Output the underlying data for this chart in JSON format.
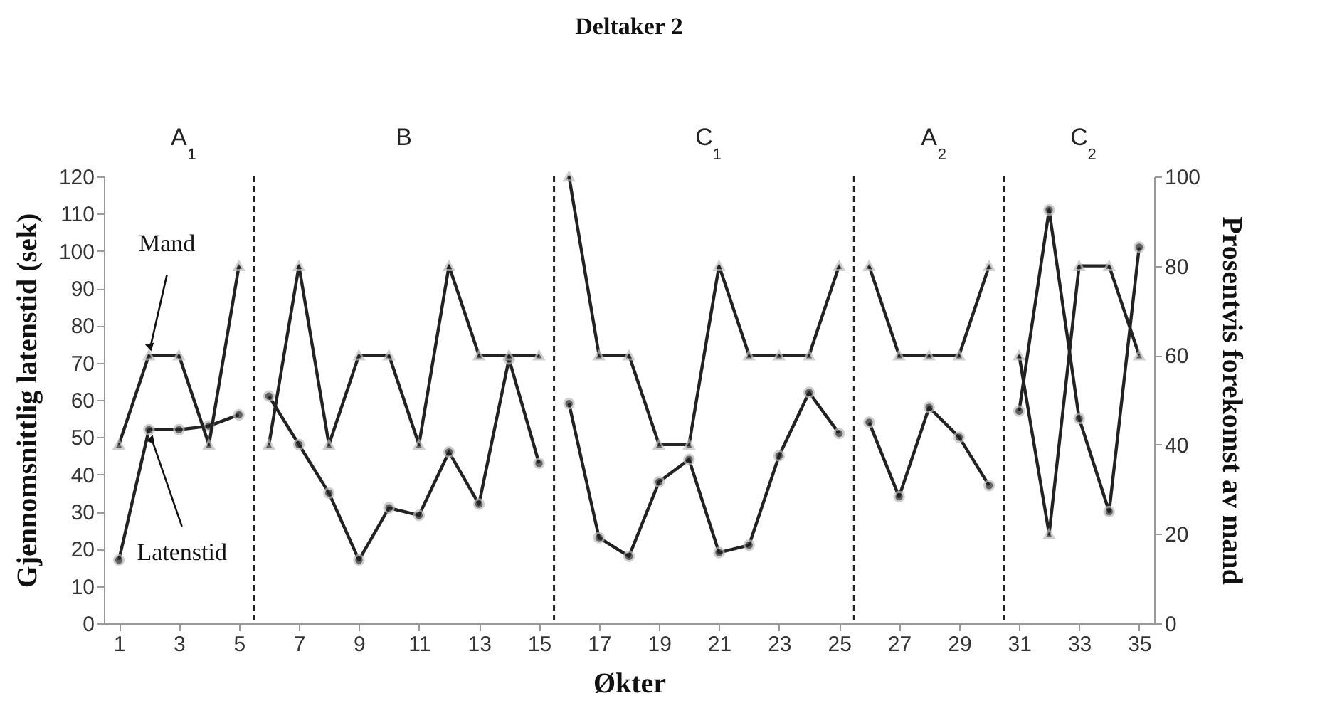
{
  "chart_data": {
    "type": "line",
    "title": "Deltaker 2",
    "xlabel": "Økter",
    "ylabel": "Gjennomsnittlig latenstid (sek)",
    "y2label": "Prosentvis forekomst av mand",
    "x": [
      1,
      2,
      3,
      4,
      5,
      6,
      7,
      8,
      9,
      10,
      11,
      12,
      13,
      14,
      15,
      16,
      17,
      18,
      19,
      20,
      21,
      22,
      23,
      24,
      25,
      26,
      27,
      28,
      29,
      30,
      31,
      32,
      33,
      34,
      35
    ],
    "series": [
      {
        "name": "Latenstid",
        "color": "#222222",
        "marker": "circle",
        "values": [
          17,
          52,
          52,
          53,
          56,
          61,
          48,
          35,
          17,
          31,
          29,
          46,
          32,
          71,
          43,
          59,
          23,
          18,
          38,
          44,
          19,
          21,
          45,
          62,
          51,
          54,
          34,
          58,
          50,
          37,
          57,
          111,
          55,
          30,
          101
        ]
      },
      {
        "name": "Mand",
        "color": "#222222",
        "marker": "triangle",
        "axis": "y2",
        "values": [
          40,
          60,
          60,
          40,
          80,
          40,
          80,
          40,
          60,
          60,
          40,
          80,
          60,
          60,
          60,
          100,
          60,
          60,
          40,
          40,
          80,
          60,
          60,
          60,
          80,
          80,
          60,
          60,
          60,
          80,
          60,
          20,
          80,
          80,
          60
        ]
      }
    ],
    "xlim": [
      0.5,
      35.5
    ],
    "xticks": [
      1,
      3,
      5,
      7,
      9,
      11,
      13,
      15,
      17,
      19,
      21,
      23,
      25,
      27,
      29,
      31,
      33,
      35
    ],
    "ylim": [
      0,
      120
    ],
    "yticks": [
      0,
      10,
      20,
      30,
      40,
      50,
      60,
      70,
      80,
      90,
      100,
      110,
      120
    ],
    "y2lim": [
      0,
      100
    ],
    "y2ticks": [
      0,
      20,
      40,
      60,
      80,
      100
    ],
    "ref_lines": [
      {
        "axis": "x",
        "value": 5.5,
        "line_style": "dashed",
        "color": "#222222"
      },
      {
        "axis": "x",
        "value": 15.5,
        "line_style": "dashed",
        "color": "#222222"
      },
      {
        "axis": "x",
        "value": 25.5,
        "line_style": "dashed",
        "color": "#222222"
      },
      {
        "axis": "x",
        "value": 30.5,
        "line_style": "dashed",
        "color": "#222222"
      }
    ],
    "annotations": [
      "A$_{1}$",
      "B",
      "C$_{1}$",
      "A$_{2}$",
      "C$_{2}$"
    ],
    "grid": false
  }
}
